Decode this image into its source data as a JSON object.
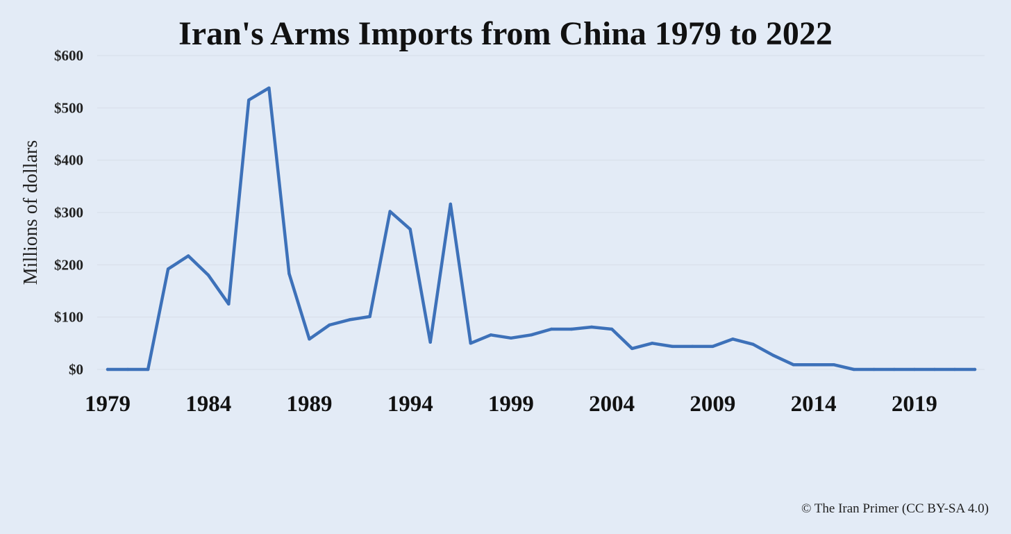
{
  "credit": "© The Iran Primer (CC BY-SA 4.0)",
  "colors": {
    "line": "#3d71b9",
    "background": "#e3ebf6",
    "grid": "#d6dde8"
  },
  "chart_data": {
    "type": "line",
    "title": "Iran's Arms Imports from China 1979 to 2022",
    "xlabel": "",
    "ylabel": "Millions of dollars",
    "xlim": [
      1979,
      2022
    ],
    "ylim": [
      0,
      600
    ],
    "x_ticks": [
      "1979",
      "1984",
      "1989",
      "1994",
      "1999",
      "2004",
      "2009",
      "2014",
      "2019"
    ],
    "y_ticks": [
      "$0",
      "$100",
      "$200",
      "$300",
      "$400",
      "$500",
      "$600"
    ],
    "grid": "horizontal",
    "legend": "none",
    "x": [
      1979,
      1980,
      1981,
      1982,
      1983,
      1984,
      1985,
      1986,
      1987,
      1988,
      1989,
      1990,
      1991,
      1992,
      1993,
      1994,
      1995,
      1996,
      1997,
      1998,
      1999,
      2000,
      2001,
      2002,
      2003,
      2004,
      2005,
      2006,
      2007,
      2008,
      2009,
      2010,
      2011,
      2012,
      2013,
      2014,
      2015,
      2016,
      2017,
      2018,
      2019,
      2020,
      2021,
      2022
    ],
    "series": [
      {
        "values": [
          0,
          0,
          0,
          192,
          217,
          180,
          125,
          515,
          538,
          183,
          58,
          85,
          95,
          101,
          302,
          268,
          52,
          316,
          50,
          66,
          60,
          66,
          77,
          77,
          81,
          77,
          40,
          50,
          44,
          44,
          44,
          58,
          48,
          27,
          9,
          9,
          9,
          0,
          0,
          0,
          0,
          0,
          0,
          0
        ]
      }
    ]
  }
}
